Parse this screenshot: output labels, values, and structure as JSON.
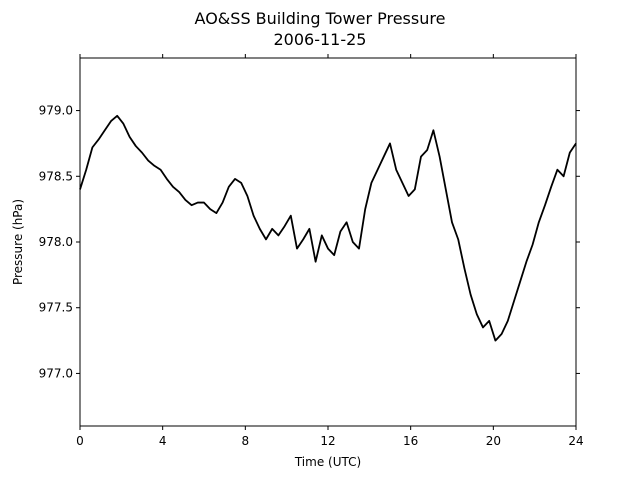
{
  "chart_data": {
    "type": "line",
    "title": "AO&SS Building Tower Pressure",
    "subtitle": "2006-11-25",
    "xlabel": "Time (UTC)",
    "ylabel": "Pressure (hPa)",
    "xlim": [
      0,
      24
    ],
    "ylim": [
      976.6,
      979.4
    ],
    "xticks": [
      0,
      4,
      8,
      12,
      16,
      20,
      24
    ],
    "yticks": [
      977.0,
      977.5,
      978.0,
      978.5,
      979.0
    ],
    "xtick_labels": [
      "0",
      "4",
      "8",
      "12",
      "16",
      "20",
      "24"
    ],
    "ytick_labels": [
      "977.0",
      "977.5",
      "978.0",
      "978.5",
      "979.0"
    ],
    "grid": false,
    "series": [
      {
        "color": "#000000",
        "x": [
          0.0,
          0.3,
          0.6,
          0.9,
          1.2,
          1.5,
          1.8,
          2.1,
          2.4,
          2.7,
          3.0,
          3.3,
          3.6,
          3.9,
          4.2,
          4.5,
          4.8,
          5.1,
          5.4,
          5.7,
          6.0,
          6.3,
          6.6,
          6.9,
          7.2,
          7.5,
          7.8,
          8.1,
          8.4,
          8.7,
          9.0,
          9.3,
          9.6,
          9.9,
          10.2,
          10.5,
          10.8,
          11.1,
          11.4,
          11.7,
          12.0,
          12.3,
          12.6,
          12.9,
          13.2,
          13.5,
          13.8,
          14.1,
          14.4,
          14.7,
          15.0,
          15.3,
          15.6,
          15.9,
          16.2,
          16.5,
          16.8,
          17.1,
          17.4,
          17.7,
          18.0,
          18.3,
          18.6,
          18.9,
          19.2,
          19.5,
          19.8,
          20.1,
          20.4,
          20.7,
          21.0,
          21.3,
          21.6,
          21.9,
          22.2,
          22.5,
          22.8,
          23.1,
          23.4,
          23.7,
          24.0
        ],
        "y": [
          978.4,
          978.55,
          978.72,
          978.78,
          978.85,
          978.92,
          978.96,
          978.9,
          978.8,
          978.73,
          978.68,
          978.62,
          978.58,
          978.55,
          978.48,
          978.42,
          978.38,
          978.32,
          978.28,
          978.3,
          978.3,
          978.25,
          978.22,
          978.3,
          978.42,
          978.48,
          978.45,
          978.35,
          978.2,
          978.1,
          978.02,
          978.1,
          978.05,
          978.12,
          978.2,
          977.95,
          978.02,
          978.1,
          977.85,
          978.05,
          977.95,
          977.9,
          978.08,
          978.15,
          978.0,
          977.95,
          978.25,
          978.45,
          978.55,
          978.65,
          978.75,
          978.55,
          978.45,
          978.35,
          978.4,
          978.65,
          978.7,
          978.85,
          978.65,
          978.4,
          978.15,
          978.02,
          977.8,
          977.6,
          977.45,
          977.35,
          977.4,
          977.25,
          977.3,
          977.4,
          977.55,
          977.7,
          977.85,
          977.98,
          978.15,
          978.28,
          978.42,
          978.55,
          978.5,
          978.68,
          978.75
        ]
      }
    ]
  }
}
